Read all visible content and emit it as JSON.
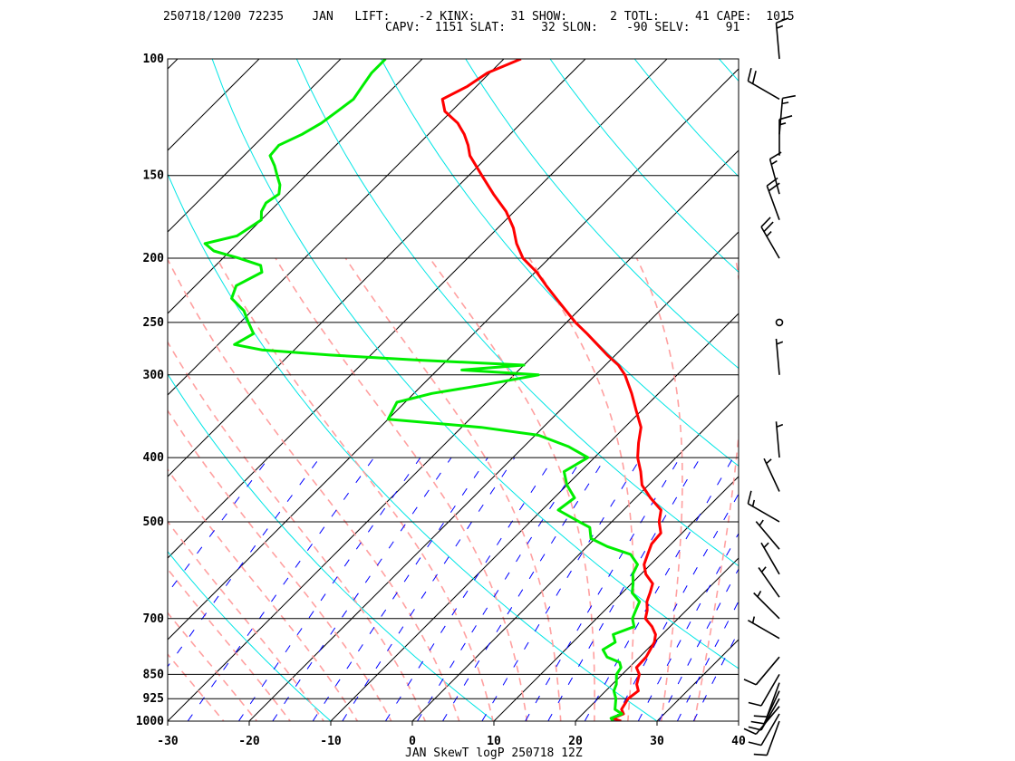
{
  "header": {
    "line1": "250718/1200 72235    JAN   LIFT:    -2 KINX:     31 SHOW:      2 TOTL:     41 CAPE:  1015",
    "line2": "CAPV:  1151 SLAT:     32 SLON:    -90 SELV:     91"
  },
  "footer": "JAN SkewT logP 250718 12Z",
  "chart_data": {
    "type": "line",
    "title": "JAN SkewT logP 250718 12Z",
    "station": "JAN",
    "indices": {
      "LIFT": -2,
      "KINX": 31,
      "SHOW": 2,
      "TOTL": 41,
      "CAPE": 1015,
      "CAPV": 1151,
      "SLAT": 32,
      "SLON": -90,
      "SELV": 91
    },
    "x_axis": {
      "label": "",
      "range": [
        -30,
        40
      ],
      "ticks": [
        -30,
        -20,
        -10,
        0,
        10,
        20,
        30,
        40
      ]
    },
    "y_axis": {
      "label": "",
      "scale": "log",
      "range": [
        1000,
        100
      ],
      "ticks": [
        100,
        150,
        200,
        250,
        300,
        400,
        500,
        700,
        850,
        925,
        1000
      ]
    },
    "colors": {
      "temperature": "#ff0000",
      "dewpoint": "#00ee00",
      "isotherm": "#000000",
      "dry_adiabat": "#00e5e5",
      "moist_adiabat": "#ffa0a0",
      "mixing_ratio": "#0000ff",
      "wind": "#000000"
    },
    "series": [
      {
        "name": "Temperature",
        "points": [
          [
            1000,
            25.6
          ],
          [
            990,
            24.2
          ],
          [
            975,
            25.0
          ],
          [
            960,
            24.2
          ],
          [
            925,
            23.7
          ],
          [
            900,
            24.0
          ],
          [
            880,
            23.0
          ],
          [
            850,
            22.1
          ],
          [
            830,
            20.9
          ],
          [
            800,
            20.8
          ],
          [
            780,
            20.4
          ],
          [
            760,
            20.0
          ],
          [
            740,
            19.2
          ],
          [
            720,
            17.8
          ],
          [
            700,
            16.0
          ],
          [
            680,
            15.2
          ],
          [
            660,
            14.1
          ],
          [
            640,
            13.4
          ],
          [
            620,
            12.6
          ],
          [
            600,
            10.6
          ],
          [
            580,
            9.2
          ],
          [
            560,
            8.4
          ],
          [
            540,
            7.6
          ],
          [
            520,
            7.4
          ],
          [
            500,
            5.8
          ],
          [
            480,
            4.6
          ],
          [
            460,
            1.8
          ],
          [
            440,
            -0.8
          ],
          [
            420,
            -2.6
          ],
          [
            400,
            -4.7
          ],
          [
            380,
            -6.4
          ],
          [
            360,
            -8.0
          ],
          [
            340,
            -10.6
          ],
          [
            320,
            -13.3
          ],
          [
            300,
            -16.4
          ],
          [
            290,
            -18.4
          ],
          [
            280,
            -21.0
          ],
          [
            270,
            -23.5
          ],
          [
            260,
            -26.1
          ],
          [
            250,
            -28.9
          ],
          [
            240,
            -31.5
          ],
          [
            230,
            -34.2
          ],
          [
            220,
            -37.0
          ],
          [
            210,
            -39.8
          ],
          [
            200,
            -43.2
          ],
          [
            190,
            -45.8
          ],
          [
            180,
            -48.1
          ],
          [
            170,
            -51.0
          ],
          [
            160,
            -54.7
          ],
          [
            150,
            -58.4
          ],
          [
            140,
            -62.3
          ],
          [
            135,
            -63.8
          ],
          [
            130,
            -65.6
          ],
          [
            125,
            -67.8
          ],
          [
            120,
            -70.8
          ],
          [
            115,
            -72.6
          ],
          [
            110,
            -71.1
          ],
          [
            105,
            -70.3
          ],
          [
            100,
            -67.9
          ]
        ]
      },
      {
        "name": "Dewpoint",
        "points": [
          [
            1000,
            24.6
          ],
          [
            990,
            24.0
          ],
          [
            975,
            24.8
          ],
          [
            960,
            23.4
          ],
          [
            925,
            22.2
          ],
          [
            900,
            21.0
          ],
          [
            880,
            20.5
          ],
          [
            850,
            19.3
          ],
          [
            830,
            19.0
          ],
          [
            815,
            18.2
          ],
          [
            800,
            16.0
          ],
          [
            780,
            14.6
          ],
          [
            760,
            15.2
          ],
          [
            740,
            14.0
          ],
          [
            720,
            15.6
          ],
          [
            700,
            14.4
          ],
          [
            680,
            13.8
          ],
          [
            660,
            13.2
          ],
          [
            640,
            11.2
          ],
          [
            620,
            10.2
          ],
          [
            600,
            9.0
          ],
          [
            580,
            8.4
          ],
          [
            560,
            6.3
          ],
          [
            545,
            2.5
          ],
          [
            530,
            -0.5
          ],
          [
            510,
            -2.0
          ],
          [
            500,
            -4.0
          ],
          [
            480,
            -8.0
          ],
          [
            460,
            -7.5
          ],
          [
            440,
            -10.0
          ],
          [
            420,
            -12.0
          ],
          [
            400,
            -10.8
          ],
          [
            385,
            -14.5
          ],
          [
            370,
            -19.6
          ],
          [
            360,
            -27.6
          ],
          [
            350,
            -40.0
          ],
          [
            330,
            -41.0
          ],
          [
            320,
            -37.8
          ],
          [
            310,
            -32.1
          ],
          [
            300,
            -27.0
          ],
          [
            295,
            -37.0
          ],
          [
            290,
            -30.0
          ],
          [
            285,
            -43.5
          ],
          [
            280,
            -55.0
          ],
          [
            275,
            -64.0
          ],
          [
            270,
            -68.0
          ],
          [
            260,
            -67.0
          ],
          [
            250,
            -69.0
          ],
          [
            240,
            -71.0
          ],
          [
            230,
            -74.0
          ],
          [
            220,
            -75.0
          ],
          [
            210,
            -73.5
          ],
          [
            205,
            -74.5
          ],
          [
            200,
            -78.0
          ],
          [
            195,
            -82.0
          ],
          [
            190,
            -84.0
          ],
          [
            185,
            -81.0
          ],
          [
            180,
            -80.5
          ],
          [
            175,
            -80.0
          ],
          [
            170,
            -81.0
          ],
          [
            165,
            -81.5
          ],
          [
            160,
            -81.0
          ],
          [
            155,
            -82.0
          ],
          [
            150,
            -83.5
          ],
          [
            145,
            -85.0
          ],
          [
            140,
            -86.8
          ],
          [
            135,
            -87.0
          ],
          [
            130,
            -85.5
          ],
          [
            125,
            -84.5
          ],
          [
            120,
            -84.0
          ],
          [
            115,
            -83.5
          ],
          [
            110,
            -84.0
          ],
          [
            105,
            -84.5
          ],
          [
            102,
            -84.5
          ],
          [
            100,
            -84.5
          ]
        ]
      }
    ],
    "wind_barbs": [
      {
        "p": 1000,
        "dir": 200,
        "spd": 10
      },
      {
        "p": 975,
        "dir": 210,
        "spd": 10
      },
      {
        "p": 950,
        "dir": 220,
        "spd": 10
      },
      {
        "p": 925,
        "dir": 210,
        "spd": 10
      },
      {
        "p": 900,
        "dir": 205,
        "spd": 10
      },
      {
        "p": 875,
        "dir": 200,
        "spd": 10
      },
      {
        "p": 850,
        "dir": 210,
        "spd": 10
      },
      {
        "p": 800,
        "dir": 220,
        "spd": 10
      },
      {
        "p": 750,
        "dir": 300,
        "spd": 5
      },
      {
        "p": 700,
        "dir": 315,
        "spd": 5
      },
      {
        "p": 650,
        "dir": 325,
        "spd": 5
      },
      {
        "p": 600,
        "dir": 330,
        "spd": 5
      },
      {
        "p": 550,
        "dir": 320,
        "spd": 5
      },
      {
        "p": 500,
        "dir": 300,
        "spd": 15
      },
      {
        "p": 450,
        "dir": 335,
        "spd": 5
      },
      {
        "p": 400,
        "dir": 355,
        "spd": 5
      },
      {
        "p": 300,
        "dir": 355,
        "spd": 5
      },
      {
        "p": 250,
        "dir": 0,
        "spd": 0
      },
      {
        "p": 200,
        "dir": 330,
        "spd": 25
      },
      {
        "p": 175,
        "dir": 340,
        "spd": 20
      },
      {
        "p": 160,
        "dir": 345,
        "spd": 15
      },
      {
        "p": 140,
        "dir": 360,
        "spd": 15
      },
      {
        "p": 130,
        "dir": 5,
        "spd": 15
      },
      {
        "p": 115,
        "dir": 300,
        "spd": 20
      },
      {
        "p": 100,
        "dir": 355,
        "spd": 15
      }
    ]
  }
}
